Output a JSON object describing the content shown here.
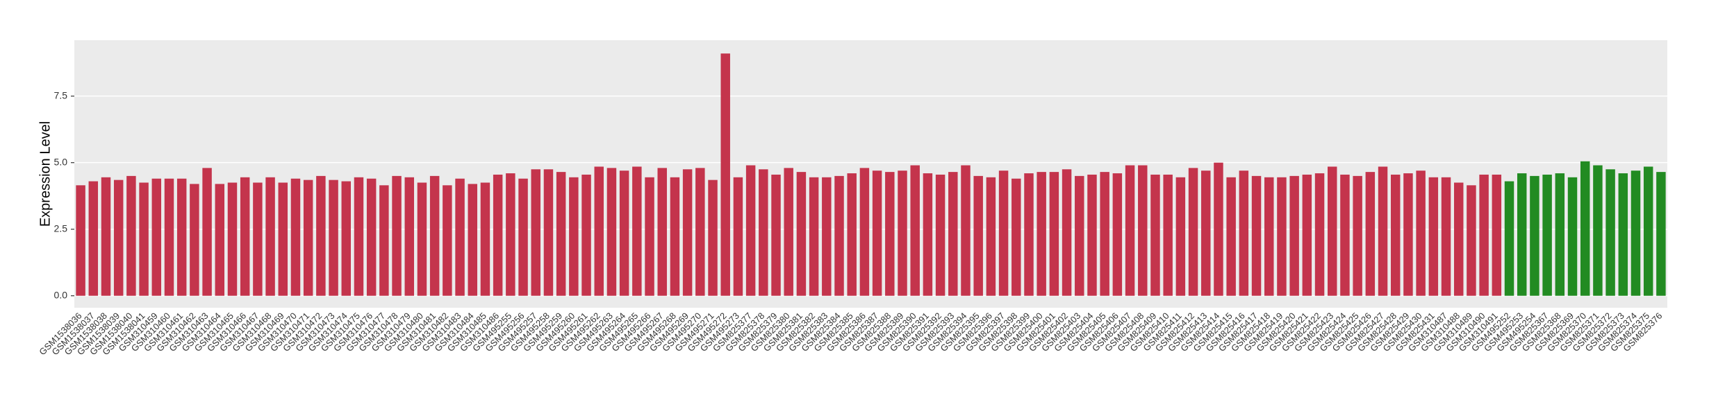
{
  "chart_data": {
    "type": "bar",
    "y_label": "Expression Level",
    "categories": [
      "GSM1538036",
      "GSM1538037",
      "GSM1538038",
      "GSM1538039",
      "GSM1538040",
      "GSM1538041",
      "GSM310459",
      "GSM310460",
      "GSM310461",
      "GSM310462",
      "GSM310463",
      "GSM310464",
      "GSM310465",
      "GSM310466",
      "GSM310467",
      "GSM310468",
      "GSM310469",
      "GSM310470",
      "GSM310471",
      "GSM310472",
      "GSM310473",
      "GSM310474",
      "GSM310475",
      "GSM310476",
      "GSM310477",
      "GSM310478",
      "GSM310479",
      "GSM310480",
      "GSM310481",
      "GSM310482",
      "GSM310483",
      "GSM310484",
      "GSM310485",
      "GSM310486",
      "GSM495255",
      "GSM495256",
      "GSM495257",
      "GSM495258",
      "GSM495259",
      "GSM495260",
      "GSM495261",
      "GSM495262",
      "GSM495263",
      "GSM495264",
      "GSM495265",
      "GSM495266",
      "GSM495267",
      "GSM495268",
      "GSM495269",
      "GSM495270",
      "GSM495271",
      "GSM495272",
      "GSM495273",
      "GSM825377",
      "GSM825378",
      "GSM825379",
      "GSM825380",
      "GSM825381",
      "GSM825382",
      "GSM825383",
      "GSM825384",
      "GSM825385",
      "GSM825386",
      "GSM825387",
      "GSM825388",
      "GSM825389",
      "GSM825390",
      "GSM825391",
      "GSM825392",
      "GSM825393",
      "GSM825394",
      "GSM825395",
      "GSM825396",
      "GSM825397",
      "GSM825398",
      "GSM825399",
      "GSM825400",
      "GSM825401",
      "GSM825402",
      "GSM825403",
      "GSM825404",
      "GSM825405",
      "GSM825406",
      "GSM825407",
      "GSM825408",
      "GSM825409",
      "GSM825410",
      "GSM825411",
      "GSM825412",
      "GSM825413",
      "GSM825414",
      "GSM825415",
      "GSM825416",
      "GSM825417",
      "GSM825418",
      "GSM825419",
      "GSM825420",
      "GSM825421",
      "GSM825422",
      "GSM825423",
      "GSM825424",
      "GSM825425",
      "GSM825426",
      "GSM825427",
      "GSM825428",
      "GSM825429",
      "GSM825430",
      "GSM825431",
      "GSM310487",
      "GSM310488",
      "GSM310489",
      "GSM310490",
      "GSM310491",
      "GSM495252",
      "GSM495253",
      "GSM495254",
      "GSM825367",
      "GSM825368",
      "GSM825369",
      "GSM825370",
      "GSM825371",
      "GSM825372",
      "GSM825373",
      "GSM825374",
      "GSM825375",
      "GSM825376"
    ],
    "values": [
      4.15,
      4.3,
      4.45,
      4.35,
      4.5,
      4.25,
      4.4,
      4.4,
      4.4,
      4.2,
      4.8,
      4.2,
      4.25,
      4.45,
      4.25,
      4.45,
      4.25,
      4.4,
      4.35,
      4.5,
      4.35,
      4.3,
      4.45,
      4.4,
      4.15,
      4.5,
      4.45,
      4.25,
      4.5,
      4.15,
      4.4,
      4.2,
      4.25,
      4.55,
      4.6,
      4.4,
      4.75,
      4.75,
      4.65,
      4.45,
      4.55,
      4.85,
      4.8,
      4.7,
      4.85,
      4.45,
      4.8,
      4.45,
      4.75,
      4.8,
      4.35,
      9.1,
      4.45,
      4.9,
      4.75,
      4.55,
      4.8,
      4.65,
      4.45,
      4.45,
      4.5,
      4.6,
      4.8,
      4.7,
      4.65,
      4.7,
      4.9,
      4.6,
      4.55,
      4.65,
      4.9,
      4.5,
      4.45,
      4.7,
      4.4,
      4.6,
      4.65,
      4.65,
      4.75,
      4.5,
      4.55,
      4.65,
      4.6,
      4.9,
      4.9,
      4.55,
      4.55,
      4.45,
      4.8,
      4.7,
      5.0,
      4.45,
      4.7,
      4.5,
      4.45,
      4.45,
      4.5,
      4.55,
      4.6,
      4.85,
      4.55,
      4.5,
      4.65,
      4.85,
      4.55,
      4.6,
      4.7,
      4.45,
      4.45,
      4.25,
      4.15,
      4.55,
      4.55,
      4.3,
      4.6,
      4.5,
      4.55,
      4.6,
      4.45,
      5.05,
      4.9,
      4.75,
      4.6,
      4.7,
      4.85,
      4.65
    ],
    "colors": [
      "#c4344c",
      "#c4344c",
      "#c4344c",
      "#c4344c",
      "#c4344c",
      "#c4344c",
      "#c4344c",
      "#c4344c",
      "#c4344c",
      "#c4344c",
      "#c4344c",
      "#c4344c",
      "#c4344c",
      "#c4344c",
      "#c4344c",
      "#c4344c",
      "#c4344c",
      "#c4344c",
      "#c4344c",
      "#c4344c",
      "#c4344c",
      "#c4344c",
      "#c4344c",
      "#c4344c",
      "#c4344c",
      "#c4344c",
      "#c4344c",
      "#c4344c",
      "#c4344c",
      "#c4344c",
      "#c4344c",
      "#c4344c",
      "#c4344c",
      "#c4344c",
      "#c4344c",
      "#c4344c",
      "#c4344c",
      "#c4344c",
      "#c4344c",
      "#c4344c",
      "#c4344c",
      "#c4344c",
      "#c4344c",
      "#c4344c",
      "#c4344c",
      "#c4344c",
      "#c4344c",
      "#c4344c",
      "#c4344c",
      "#c4344c",
      "#c4344c",
      "#c4344c",
      "#c4344c",
      "#c4344c",
      "#c4344c",
      "#c4344c",
      "#c4344c",
      "#c4344c",
      "#c4344c",
      "#c4344c",
      "#c4344c",
      "#c4344c",
      "#c4344c",
      "#c4344c",
      "#c4344c",
      "#c4344c",
      "#c4344c",
      "#c4344c",
      "#c4344c",
      "#c4344c",
      "#c4344c",
      "#c4344c",
      "#c4344c",
      "#c4344c",
      "#c4344c",
      "#c4344c",
      "#c4344c",
      "#c4344c",
      "#c4344c",
      "#c4344c",
      "#c4344c",
      "#c4344c",
      "#c4344c",
      "#c4344c",
      "#c4344c",
      "#c4344c",
      "#c4344c",
      "#c4344c",
      "#c4344c",
      "#c4344c",
      "#c4344c",
      "#c4344c",
      "#c4344c",
      "#c4344c",
      "#c4344c",
      "#c4344c",
      "#c4344c",
      "#c4344c",
      "#c4344c",
      "#c4344c",
      "#c4344c",
      "#c4344c",
      "#c4344c",
      "#c4344c",
      "#c4344c",
      "#c4344c",
      "#c4344c",
      "#c4344c",
      "#c4344c",
      "#c4344c",
      "#c4344c",
      "#c4344c",
      "#c4344c",
      "#228b22",
      "#228b22",
      "#228b22",
      "#228b22",
      "#228b22",
      "#228b22",
      "#228b22",
      "#228b22",
      "#228b22",
      "#228b22",
      "#228b22",
      "#228b22",
      "#228b22",
      "#228b22",
      "#228b22",
      "#228b22",
      "#228b22",
      "#228b22"
    ],
    "ylim": [
      -0.45,
      9.6
    ],
    "yticks": [
      {
        "value": 0,
        "label": "0.0"
      },
      2.5,
      {
        "value": 5,
        "label": "5.0"
      },
      7.5
    ],
    "grid": true
  }
}
